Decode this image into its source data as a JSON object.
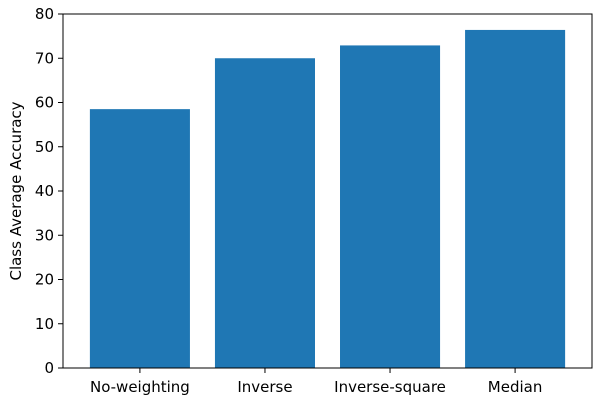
{
  "chart_data": {
    "type": "bar",
    "title": "",
    "xlabel": "",
    "ylabel": "Class Average Accuracy",
    "categories": [
      "No-weighting",
      "Inverse",
      "Inverse-square",
      "Median"
    ],
    "values": [
      58.5,
      70.0,
      72.9,
      76.4
    ],
    "ylim": [
      0,
      80
    ],
    "yticks": [
      0,
      10,
      20,
      30,
      40,
      50,
      60,
      70,
      80
    ],
    "ytick_labels": [
      "0",
      "10",
      "20",
      "30",
      "40",
      "50",
      "60",
      "70",
      "80"
    ],
    "grid": false,
    "bar_color": "#1f77b4",
    "axis_color": "#000000"
  }
}
